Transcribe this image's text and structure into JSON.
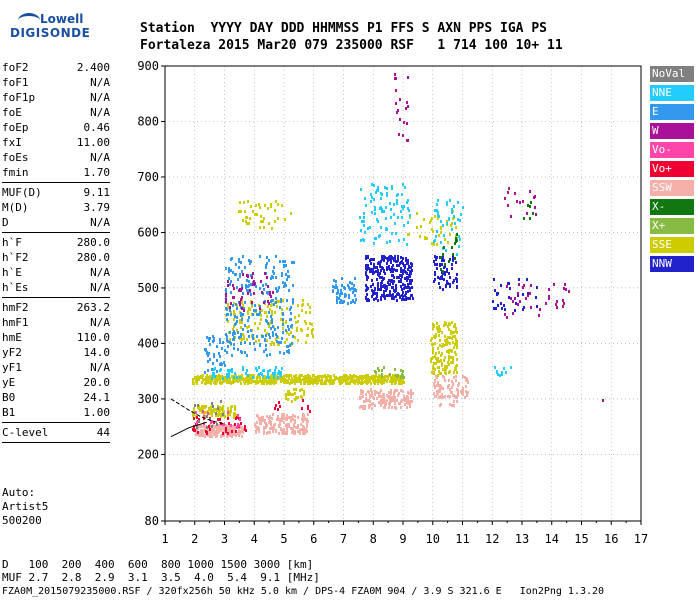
{
  "logo": {
    "line1": "Lowell",
    "line2": "DIGISONDE"
  },
  "header": {
    "labels": [
      "Station",
      "YYYY",
      "DAY",
      "DDD",
      "HHMMSS",
      "P1",
      "FFS",
      "S",
      "AXN",
      "PPS",
      "IGA",
      "PS"
    ],
    "values": [
      "Fortaleza",
      "2015",
      "Mar20",
      "079",
      "235000",
      "RSF",
      "1",
      "714",
      "100",
      "10+",
      "11"
    ]
  },
  "params": {
    "group1": [
      {
        "k": "foF2",
        "v": "2.400"
      },
      {
        "k": "foF1",
        "v": "N/A"
      },
      {
        "k": "foF1p",
        "v": "N/A"
      },
      {
        "k": "foE",
        "v": "N/A"
      },
      {
        "k": "foEp",
        "v": "0.46"
      },
      {
        "k": "fxI",
        "v": "11.00"
      },
      {
        "k": "foEs",
        "v": "N/A"
      },
      {
        "k": "fmin",
        "v": "1.70"
      }
    ],
    "group2": [
      {
        "k": "MUF(D)",
        "v": "9.11"
      },
      {
        "k": "M(D)",
        "v": "3.79"
      },
      {
        "k": "D",
        "v": "N/A"
      }
    ],
    "group3": [
      {
        "k": "h`F",
        "v": "280.0"
      },
      {
        "k": "h`F2",
        "v": "280.0"
      },
      {
        "k": "h`E",
        "v": "N/A"
      },
      {
        "k": "h`Es",
        "v": "N/A"
      }
    ],
    "group4": [
      {
        "k": "hmF2",
        "v": "263.2"
      },
      {
        "k": "hmF1",
        "v": "N/A"
      },
      {
        "k": "hmE",
        "v": "110.0"
      },
      {
        "k": "yF2",
        "v": "14.0"
      },
      {
        "k": "yF1",
        "v": "N/A"
      },
      {
        "k": "yE",
        "v": "20.0"
      },
      {
        "k": "B0",
        "v": "24.1"
      },
      {
        "k": "B1",
        "v": "1.00"
      }
    ],
    "group5": [
      {
        "k": "C-level",
        "v": "44"
      }
    ]
  },
  "auto": {
    "line1": "Auto:",
    "line2": "Artist5",
    "line3": "500200"
  },
  "legend": [
    {
      "label": "NoVal",
      "color": "#808080"
    },
    {
      "label": "NNE",
      "color": "#22ccff"
    },
    {
      "label": "E",
      "color": "#3399ee"
    },
    {
      "label": "W",
      "color": "#aa1199"
    },
    {
      "label": "Vo-",
      "color": "#ff44aa"
    },
    {
      "label": "Vo+",
      "color": "#ee0033"
    },
    {
      "label": "SSW",
      "color": "#f4b0a8"
    },
    {
      "label": "X-",
      "color": "#117711"
    },
    {
      "label": "X+",
      "color": "#88bb44"
    },
    {
      "label": "SSE",
      "color": "#cccc00"
    },
    {
      "label": "NNW",
      "color": "#2222cc"
    }
  ],
  "dtable": {
    "d_label": "D",
    "d_values": [
      "100",
      "200",
      "400",
      "600",
      "800",
      "1000",
      "1500",
      "3000"
    ],
    "d_unit": "[km]",
    "muf_label": "MUF",
    "muf_values": [
      "2.7",
      "2.8",
      "2.9",
      "3.1",
      "3.5",
      "4.0",
      "5.4",
      "9.1"
    ],
    "muf_unit": "[MHz]"
  },
  "footer": "FZA0M_2015079235000.RSF / 320fx256h 50 kHz 5.0 km / DPS-4 FZA0M 904 / 3.9 S 321.6 E   Ion2Png 1.3.20",
  "chart_data": {
    "type": "scatter",
    "xlim": [
      1,
      17
    ],
    "ylim": [
      80,
      900
    ],
    "xticks": [
      1,
      2,
      3,
      4,
      5,
      6,
      7,
      8,
      9,
      10,
      11,
      12,
      13,
      14,
      15,
      16,
      17
    ],
    "yticks": [
      80,
      200,
      300,
      400,
      500,
      600,
      700,
      800,
      900
    ],
    "grid": "dotted",
    "legend_position": "right",
    "series": [
      {
        "name": "SSW",
        "color": "#f4b0a8",
        "clusters": [
          {
            "x": [
              2.0,
              3.6
            ],
            "y": [
              235,
              255
            ],
            "n": 220
          },
          {
            "x": [
              4.0,
              5.8
            ],
            "y": [
              240,
              275
            ],
            "n": 180
          },
          {
            "x": [
              7.5,
              9.3
            ],
            "y": [
              285,
              320
            ],
            "n": 160
          },
          {
            "x": [
              10.0,
              11.2
            ],
            "y": [
              305,
              345
            ],
            "n": 80
          },
          {
            "x": [
              10.1,
              10.8
            ],
            "y": [
              290,
              310
            ],
            "n": 15
          }
        ]
      },
      {
        "name": "SSE",
        "color": "#cccc00",
        "clusters": [
          {
            "x": [
              1.9,
              9.0
            ],
            "y": [
              330,
              345
            ],
            "n": 650
          },
          {
            "x": [
              1.9,
              3.4
            ],
            "y": [
              270,
              290
            ],
            "n": 120
          },
          {
            "x": [
              3.0,
              6.0
            ],
            "y": [
              400,
              480
            ],
            "n": 150
          },
          {
            "x": [
              3.4,
              5.3
            ],
            "y": [
              610,
              660
            ],
            "n": 40
          },
          {
            "x": [
              9.9,
              10.8
            ],
            "y": [
              345,
              440
            ],
            "n": 160
          },
          {
            "x": [
              9.0,
              10.8
            ],
            "y": [
              580,
              640
            ],
            "n": 40
          },
          {
            "x": [
              5.0,
              5.7
            ],
            "y": [
              295,
              320
            ],
            "n": 25
          }
        ]
      },
      {
        "name": "E",
        "color": "#3399ee",
        "clusters": [
          {
            "x": [
              3.0,
              5.3
            ],
            "y": [
              380,
              560
            ],
            "n": 260
          },
          {
            "x": [
              6.6,
              7.4
            ],
            "y": [
              475,
              520
            ],
            "n": 60
          },
          {
            "x": [
              2.3,
              3.0
            ],
            "y": [
              350,
              420
            ],
            "n": 40
          }
        ]
      },
      {
        "name": "NNE",
        "color": "#22ccff",
        "clusters": [
          {
            "x": [
              7.5,
              9.2
            ],
            "y": [
              580,
              690
            ],
            "n": 90
          },
          {
            "x": [
              2.5,
              5.0
            ],
            "y": [
              340,
              360
            ],
            "n": 60
          },
          {
            "x": [
              10.0,
              11.0
            ],
            "y": [
              560,
              660
            ],
            "n": 40
          },
          {
            "x": [
              12.0,
              12.6
            ],
            "y": [
              345,
              360
            ],
            "n": 10
          }
        ]
      },
      {
        "name": "NNW",
        "color": "#2222cc",
        "clusters": [
          {
            "x": [
              7.7,
              9.3
            ],
            "y": [
              480,
              560
            ],
            "n": 300
          },
          {
            "x": [
              10.0,
              10.8
            ],
            "y": [
              500,
              560
            ],
            "n": 60
          },
          {
            "x": [
              12.0,
              13.5
            ],
            "y": [
              460,
              520
            ],
            "n": 30
          }
        ]
      },
      {
        "name": "W",
        "color": "#aa1199",
        "clusters": [
          {
            "x": [
              3.0,
              4.6
            ],
            "y": [
              460,
              530
            ],
            "n": 50
          },
          {
            "x": [
              8.6,
              9.2
            ],
            "y": [
              760,
              890
            ],
            "n": 20
          },
          {
            "x": [
              12.2,
              14.6
            ],
            "y": [
              450,
              510
            ],
            "n": 35
          },
          {
            "x": [
              12.2,
              13.5
            ],
            "y": [
              620,
              690
            ],
            "n": 15
          },
          {
            "x": [
              15.7,
              15.7
            ],
            "y": [
              300,
              300
            ],
            "n": 1
          }
        ]
      },
      {
        "name": "X-",
        "color": "#117711",
        "clusters": [
          {
            "x": [
              10.1,
              10.8
            ],
            "y": [
              530,
              600
            ],
            "n": 15
          },
          {
            "x": [
              13.0,
              13.5
            ],
            "y": [
              620,
              660
            ],
            "n": 6
          }
        ]
      },
      {
        "name": "X+",
        "color": "#88bb44",
        "clusters": [
          {
            "x": [
              8.0,
              9.0
            ],
            "y": [
              340,
              360
            ],
            "n": 20
          }
        ]
      },
      {
        "name": "Vo+",
        "color": "#ee0033",
        "clusters": [
          {
            "x": [
              1.9,
              3.8
            ],
            "y": [
              240,
              270
            ],
            "n": 40
          },
          {
            "x": [
              4.6,
              6.0
            ],
            "y": [
              280,
              300
            ],
            "n": 10
          }
        ]
      },
      {
        "name": "Vo-",
        "color": "#ff44aa",
        "clusters": [
          {
            "x": [
              2.0,
              3.5
            ],
            "y": [
              250,
              280
            ],
            "n": 20
          }
        ]
      },
      {
        "name": "NoVal",
        "color": "#808080",
        "clusters": [
          {
            "x": [
              1.9,
              3.0
            ],
            "y": [
              250,
              300
            ],
            "n": 15
          }
        ]
      }
    ],
    "trace": {
      "color": "#000000",
      "points": [
        [
          1.2,
          300
        ],
        [
          1.8,
          280
        ],
        [
          2.2,
          268
        ],
        [
          2.6,
          260
        ],
        [
          3.0,
          255
        ]
      ],
      "lower": [
        [
          1.2,
          232
        ],
        [
          1.8,
          248
        ],
        [
          2.4,
          258
        ]
      ]
    }
  }
}
